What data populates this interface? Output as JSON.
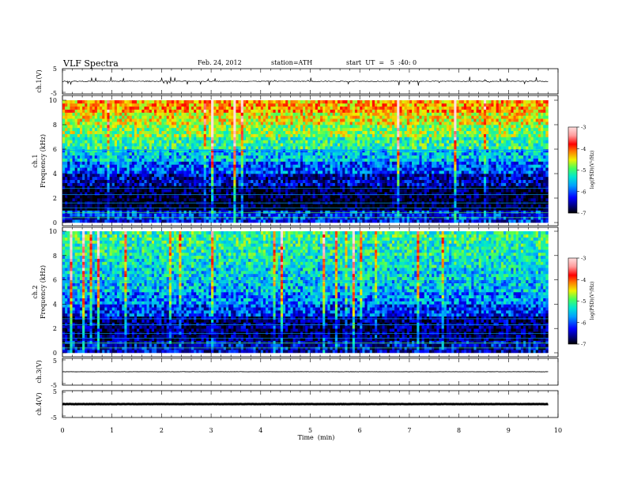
{
  "header": {
    "title": "VLF  Spectra",
    "date": "Feb. 24, 2012",
    "station": "station=ATH",
    "start": "start  UT  =   5  :40: 0"
  },
  "chart_data": [
    {
      "type": "line",
      "panel": "ch1-waveform",
      "ylabel": "ch.1(V)",
      "ylim": [
        -5,
        5
      ],
      "y_ticks": [
        "5",
        "-5"
      ],
      "description_values": {
        "baseline_V": 0,
        "spikes": "frequent impulsive spikes up to about +2 V and down to -2 V"
      }
    },
    {
      "type": "heatmap",
      "panel": "ch1-spectrogram",
      "ylabel": "ch.1\nFrequency (kHz)",
      "ylim": [
        0,
        10
      ],
      "y_ticks": [
        "0",
        "2",
        "4",
        "6",
        "8",
        "10"
      ],
      "colorbar": {
        "label": "log(PSD)(V²/Hz)",
        "range": [
          -7,
          -3
        ],
        "ticks": [
          "-3",
          "-4",
          "-5",
          "-6",
          "-7"
        ]
      },
      "level_by_freq_khz": [
        {
          "f": 0.5,
          "log_psd": -6.2
        },
        {
          "f": 1.5,
          "log_psd": -6.9
        },
        {
          "f": 2.5,
          "log_psd": -6.8
        },
        {
          "f": 3.5,
          "log_psd": -6.4
        },
        {
          "f": 4.5,
          "log_psd": -6.0
        },
        {
          "f": 5.5,
          "log_psd": -5.6
        },
        {
          "f": 6.5,
          "log_psd": -5.2
        },
        {
          "f": 7.5,
          "log_psd": -4.9
        },
        {
          "f": 8.5,
          "log_psd": -4.6
        },
        {
          "f": 9.5,
          "log_psd": -4.3
        }
      ]
    },
    {
      "type": "heatmap",
      "panel": "ch2-spectrogram",
      "ylabel": "ch.2\nFrequency (kHz)",
      "ylim": [
        0,
        10
      ],
      "y_ticks": [
        "0",
        "2",
        "4",
        "6",
        "8",
        "10"
      ],
      "colorbar": {
        "label": "log(PSD)(V²/Hz)",
        "range": [
          -7,
          -3
        ],
        "ticks": [
          "-3",
          "-4",
          "-5",
          "-6",
          "-7"
        ]
      },
      "level_by_freq_khz": [
        {
          "f": 0.5,
          "log_psd": -6.4
        },
        {
          "f": 1.5,
          "log_psd": -6.7
        },
        {
          "f": 2.5,
          "log_psd": -6.6
        },
        {
          "f": 3.5,
          "log_psd": -6.1
        },
        {
          "f": 4.5,
          "log_psd": -5.8
        },
        {
          "f": 5.5,
          "log_psd": -5.6
        },
        {
          "f": 6.5,
          "log_psd": -5.5
        },
        {
          "f": 7.5,
          "log_psd": -5.4
        },
        {
          "f": 8.5,
          "log_psd": -5.3
        },
        {
          "f": 9.5,
          "log_psd": -5.2
        }
      ]
    },
    {
      "type": "line",
      "panel": "ch3-waveform",
      "ylabel": "ch.3(V)",
      "ylim": [
        -5,
        5
      ],
      "y_ticks": [
        "5",
        "-5"
      ],
      "description_values": {
        "baseline_V": 0
      }
    },
    {
      "type": "line",
      "panel": "ch4-waveform",
      "ylabel": "ch.4(V)",
      "ylim": [
        -5,
        5
      ],
      "y_ticks": [
        "5",
        "-5"
      ],
      "description_values": {
        "baseline_V": 0
      }
    }
  ],
  "x_axis": {
    "label": "Time  (min)",
    "xlim": [
      0,
      10
    ],
    "data_end_min": 9.8,
    "ticks": [
      "0",
      "1",
      "2",
      "3",
      "4",
      "5",
      "6",
      "7",
      "8",
      "9",
      "10"
    ]
  },
  "colormap": [
    "#000000",
    "#00007a",
    "#0000ff",
    "#00a0ff",
    "#00e6d2",
    "#46ff5a",
    "#f0f000",
    "#ff7800",
    "#ff0000",
    "#ff9a9a",
    "#ffdede"
  ]
}
